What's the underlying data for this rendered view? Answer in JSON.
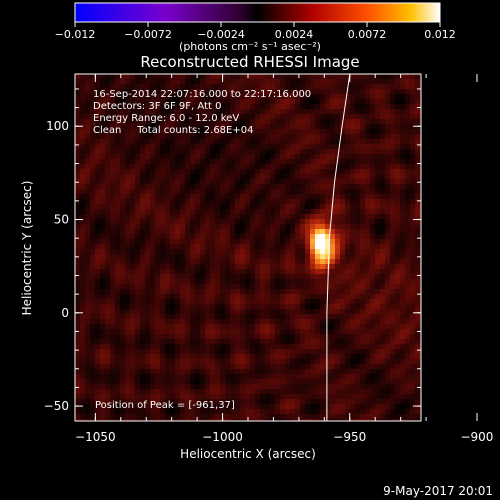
{
  "chart_data": {
    "type": "heatmap",
    "title": "Reconstructed RHESSI Image",
    "xlabel": "Heliocentric X (arcsec)",
    "ylabel": "Heliocentric Y (arcsec)",
    "xlim": [
      -1058,
      -922
    ],
    "ylim": [
      -58,
      128
    ],
    "x_ticks": [
      -1050,
      -1000,
      -950,
      -900
    ],
    "x_tick_labels": [
      "−1050",
      "−1000",
      "−950",
      "−900"
    ],
    "y_ticks": [
      -50,
      0,
      50,
      100
    ],
    "y_tick_labels": [
      "−50",
      "0",
      "50",
      "100"
    ],
    "colorbar": {
      "min": -0.012,
      "max": 0.012,
      "tick_labels": [
        "−0.012",
        "−0.0072",
        "−0.0024",
        "0.0024",
        "0.0072",
        "0.012"
      ],
      "unit_label": "(photons cm⁻² s⁻¹ asec⁻²)"
    },
    "annotations": [
      "16-Sep-2014 22:07:16.000 to 22:17:16.000",
      "Detectors: 3F 6F 9F, Att 0",
      "Energy Range: 6.0 - 12.0 keV",
      "Clean     Total counts: 2.68E+04"
    ],
    "peak_label": "Position of Peak = [-961,37]",
    "peak": {
      "x": -961,
      "y": 37
    },
    "limb": [
      [
        -950,
        128
      ],
      [
        -953,
        100
      ],
      [
        -956,
        70
      ],
      [
        -958,
        40
      ],
      [
        -959,
        0
      ],
      [
        -959,
        -58
      ]
    ],
    "colormap": [
      "#000000",
      "#3b0505",
      "#7a1008",
      "#b82a0c",
      "#e85a14",
      "#ffa030",
      "#ffe070",
      "#ffffff"
    ]
  },
  "footer": {
    "date": "9-May-2017 20:01"
  }
}
